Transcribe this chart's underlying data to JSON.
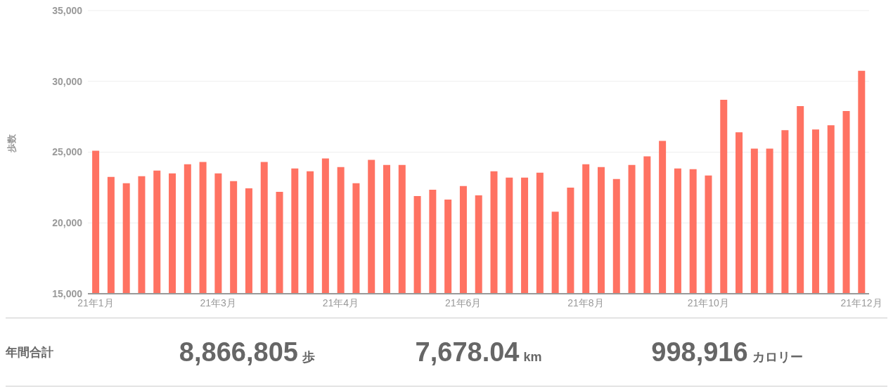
{
  "chart_data": {
    "type": "bar",
    "ylabel": "歩数",
    "categories": [
      "21年1月",
      null,
      null,
      null,
      null,
      null,
      null,
      null,
      "21年3月",
      null,
      null,
      null,
      null,
      null,
      null,
      null,
      "21年4月",
      null,
      null,
      null,
      null,
      null,
      null,
      null,
      "21年6月",
      null,
      null,
      null,
      null,
      null,
      null,
      null,
      "21年8月",
      null,
      null,
      null,
      null,
      null,
      null,
      null,
      "21年10月",
      null,
      null,
      null,
      null,
      null,
      null,
      null,
      null,
      null,
      "21年12月"
    ],
    "values": [
      25100,
      23250,
      22800,
      23300,
      23700,
      23500,
      24150,
      24300,
      23500,
      22950,
      22450,
      24300,
      22200,
      23850,
      23650,
      24550,
      23950,
      22800,
      24450,
      24100,
      24100,
      21900,
      22350,
      21650,
      22600,
      21950,
      23650,
      23200,
      23200,
      23550,
      20800,
      22500,
      24150,
      23950,
      23100,
      24100,
      24700,
      25800,
      23850,
      23800,
      23350,
      28700,
      26400,
      25250,
      25250,
      26550,
      28250,
      26600,
      26900,
      27900,
      30750
    ],
    "color": "#ff7262",
    "ylim": [
      15000,
      35000
    ],
    "yticks": [
      {
        "value": 15000,
        "label": "15,000"
      },
      {
        "value": 20000,
        "label": "20,000"
      },
      {
        "value": 25000,
        "label": "25,000"
      },
      {
        "value": 30000,
        "label": "30,000"
      },
      {
        "value": 35000,
        "label": "35,000"
      }
    ],
    "grid": "y",
    "annotations": [
      "年間合計",
      "8,866,805",
      "歩",
      "7,678.04",
      "km",
      "998,916",
      "カロリー"
    ]
  }
}
